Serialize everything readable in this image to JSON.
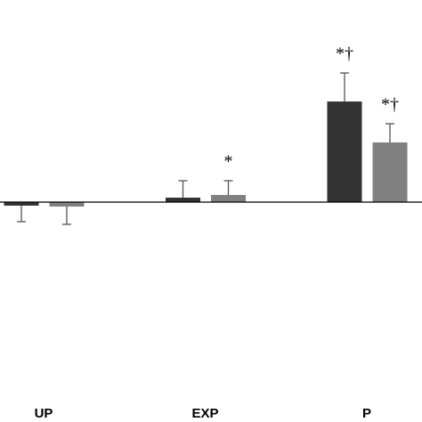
{
  "chart_data": {
    "type": "bar",
    "categories": [
      "UP",
      "EXP",
      "P"
    ],
    "series": [
      {
        "color": "#333333",
        "values": [
          -0.4,
          0.5,
          11.3
        ],
        "errors": [
          1.8,
          1.9,
          3.2
        ],
        "annotations": [
          null,
          null,
          "*†"
        ]
      },
      {
        "color": "#808080",
        "values": [
          -0.5,
          0.8,
          6.7
        ],
        "errors": [
          2.0,
          1.6,
          2.1
        ],
        "annotations": [
          null,
          "*",
          "*†"
        ]
      }
    ],
    "ylim": [
      -23,
      22.7
    ]
  }
}
